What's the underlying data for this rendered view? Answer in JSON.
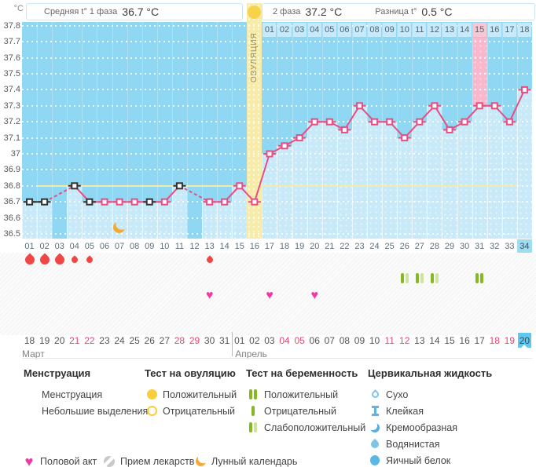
{
  "header": {
    "unit": "°C",
    "phase1_label": "Средняя t° 1 фаза",
    "phase1_value": "36.7 °C",
    "phase2_label": "2 фаза",
    "phase2_value": "37.2 °C",
    "diff_label": "Разница t°",
    "diff_value": "0.5 °C"
  },
  "chart_data": {
    "type": "line",
    "title": "Basal body temperature cycle chart",
    "ylabel": "°C",
    "ylim": [
      36.5,
      37.8
    ],
    "ytick_labels": [
      "37.8",
      "37.7",
      "37.6",
      "37.5",
      "37.4",
      "37.3",
      "37.2",
      "37.1",
      "37",
      "36.9",
      "36.8",
      "36.7",
      "36.6",
      "36.5"
    ],
    "x": [
      1,
      2,
      3,
      4,
      5,
      6,
      7,
      8,
      9,
      10,
      11,
      12,
      13,
      14,
      15,
      16,
      17,
      18,
      19,
      20,
      21,
      22,
      23,
      24,
      25,
      26,
      27,
      28,
      29,
      30,
      31,
      32,
      33,
      34
    ],
    "temperatures": [
      36.7,
      36.7,
      null,
      36.8,
      36.7,
      36.7,
      36.7,
      36.7,
      36.7,
      36.7,
      36.8,
      null,
      36.7,
      36.7,
      36.8,
      36.7,
      37.0,
      37.05,
      37.1,
      37.2,
      37.2,
      37.15,
      37.3,
      37.2,
      37.2,
      37.1,
      37.2,
      37.3,
      37.15,
      37.2,
      37.3,
      37.3,
      37.2,
      37.4
    ],
    "black_marker_days": [
      1,
      2,
      4,
      5,
      9,
      11
    ],
    "dashed_gaps": [
      [
        2,
        4
      ],
      [
        11,
        13
      ]
    ],
    "coverline_temp": 36.8,
    "ovulation_day": 16,
    "ovulation_label": "ОВУЛЯЦИЯ",
    "highlight_pink_day": 31,
    "grid": "on",
    "legend_position": "bottom"
  },
  "dpo_row": {
    "labels": [
      "01",
      "02",
      "03",
      "04",
      "05",
      "06",
      "07",
      "08",
      "09",
      "10",
      "11",
      "12",
      "13",
      "14",
      "15",
      "16",
      "17",
      "18"
    ],
    "highlighted": "15"
  },
  "cycle_day_row": {
    "labels": [
      "01",
      "02",
      "03",
      "04",
      "05",
      "06",
      "07",
      "08",
      "09",
      "10",
      "11",
      "12",
      "13",
      "14",
      "15",
      "16",
      "17",
      "18",
      "19",
      "20",
      "21",
      "22",
      "23",
      "24",
      "25",
      "26",
      "27",
      "28",
      "29",
      "30",
      "31",
      "32",
      "33",
      "34"
    ],
    "current": "34"
  },
  "marks": {
    "menstruation": [
      {
        "day": 1,
        "size": "large"
      },
      {
        "day": 2,
        "size": "large"
      },
      {
        "day": 3,
        "size": "large"
      },
      {
        "day": 4,
        "size": "small"
      },
      {
        "day": 5,
        "size": "small"
      },
      {
        "day": 13,
        "size": "small"
      }
    ],
    "pregnancy_tests": [
      {
        "day": 26,
        "result": "weak"
      },
      {
        "day": 27,
        "result": "weak"
      },
      {
        "day": 28,
        "result": "weak"
      },
      {
        "day": 31,
        "result": "positive"
      }
    ],
    "intercourse_days": [
      13,
      17,
      20
    ],
    "lunar_days": [
      7
    ]
  },
  "dates": {
    "march": {
      "label": "Март",
      "days": [
        "18",
        "19",
        "20",
        "21",
        "22",
        "23",
        "24",
        "25",
        "26",
        "27",
        "28",
        "29",
        "30",
        "31"
      ],
      "red": [
        "21",
        "22",
        "28",
        "29"
      ]
    },
    "april": {
      "label": "Апрель",
      "days": [
        "01",
        "02",
        "03",
        "04",
        "05",
        "06",
        "07",
        "08",
        "09",
        "10",
        "11",
        "12",
        "13",
        "14",
        "15",
        "16",
        "17",
        "18",
        "19",
        "20"
      ],
      "red": [
        "04",
        "05",
        "11",
        "12",
        "18",
        "19"
      ],
      "current": "20"
    }
  },
  "legend": {
    "columns": [
      {
        "title": "Менструация",
        "items": [
          {
            "icon": "drop-large",
            "label": "Менструация"
          },
          {
            "icon": "drop-small",
            "label": "Небольшие выделения"
          }
        ]
      },
      {
        "title": "Тест на овуляцию",
        "items": [
          {
            "icon": "circle-filled-yellow",
            "label": "Положительный"
          },
          {
            "icon": "circle-outline-yellow",
            "label": "Отрицательный"
          }
        ]
      },
      {
        "title": "Тест на беременность",
        "items": [
          {
            "icon": "bars-positive",
            "label": "Положительный"
          },
          {
            "icon": "bar-negative",
            "label": "Отрицательный"
          },
          {
            "icon": "bars-weak",
            "label": "Слабоположительный"
          }
        ]
      },
      {
        "title": "Цервикальная жидкость",
        "items": [
          {
            "icon": "cf-dry",
            "label": "Сухо"
          },
          {
            "icon": "cf-sticky",
            "label": "Клейкая"
          },
          {
            "icon": "cf-creamy",
            "label": "Кремообразная"
          },
          {
            "icon": "cf-watery",
            "label": "Водянистая"
          },
          {
            "icon": "cf-eggwhite",
            "label": "Яичный белок"
          }
        ]
      }
    ],
    "bottom_items": [
      {
        "icon": "heart",
        "label": "Половой акт"
      },
      {
        "icon": "pill",
        "label": "Прием лекарств"
      },
      {
        "icon": "moon",
        "label": "Лунный календарь"
      }
    ]
  },
  "colors": {
    "plot_bg": "#8fd7f2",
    "area_fill": "#c8e9f7",
    "ovulation_column": "#f6eba9",
    "pink_column": "#f8b7cb",
    "coverline": "#f1eca9",
    "line_pink": "#e94d82",
    "line_black": "#333333",
    "menstruation_red": "#ef4743",
    "heart_pink": "#f13ba2",
    "moon_orange": "#f7a832",
    "test_green_dark": "#85b822",
    "test_green_light": "#cfe3a0",
    "current_day_blue": "#5ec8ee",
    "weekend_red": "#e8486d"
  }
}
